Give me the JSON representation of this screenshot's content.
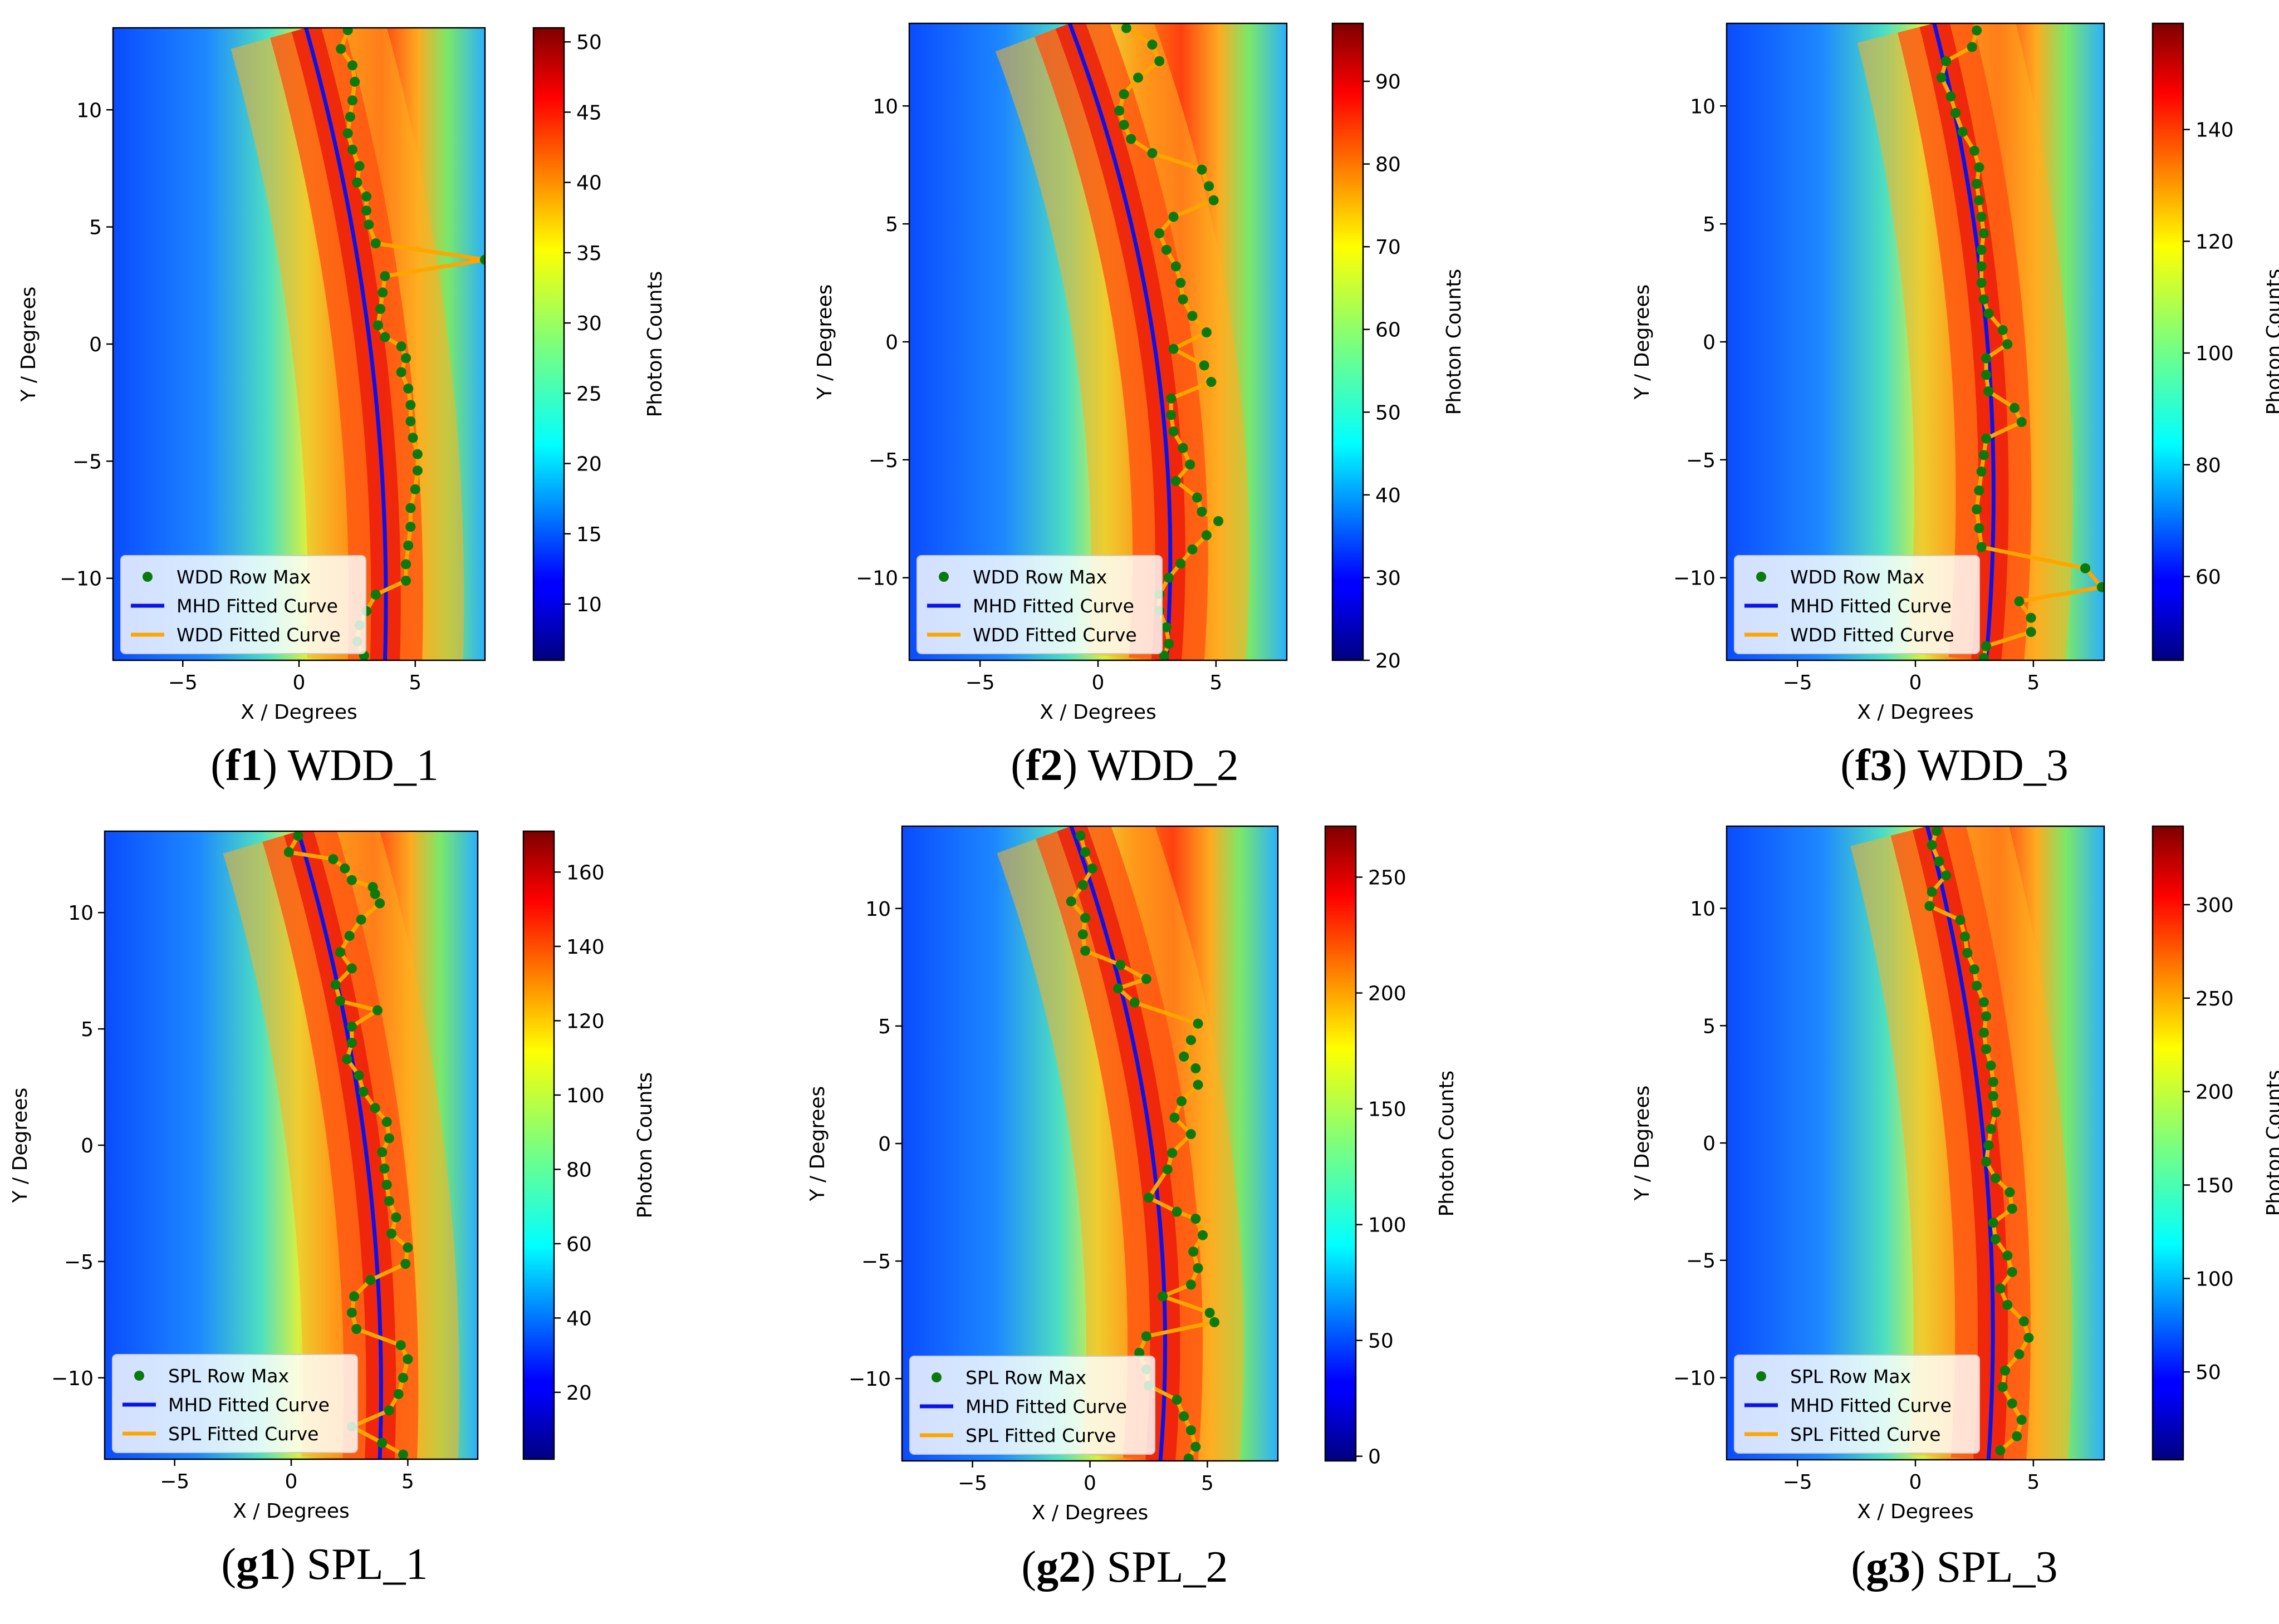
{
  "colors": {
    "mhd_curve": "#0a14e6",
    "fitted_curve": "#ffa500",
    "row_max": "#0a7a0a",
    "colormap": "jet"
  },
  "chart_data": [
    {
      "type": "heatmap",
      "id": "f1",
      "caption_label": "f1",
      "caption_text": "WDD_1",
      "xlabel": "X / Degrees",
      "ylabel": "Y / Degrees",
      "xlim": [
        -8,
        8
      ],
      "ylim": [
        -13.5,
        13.5
      ],
      "xticks": [
        -5,
        0,
        5
      ],
      "yticks": [
        -10,
        -5,
        0,
        5,
        10
      ],
      "colorbar": {
        "label": "Photon Counts",
        "min": 6,
        "max": 51,
        "ticks": [
          10,
          15,
          20,
          25,
          30,
          35,
          40,
          45,
          50
        ]
      },
      "legend": {
        "placement": "lower-left",
        "entries": [
          "WDD Row Max",
          "MHD Fitted Curve",
          "WDD Fitted Curve"
        ]
      },
      "mhd_curve": {
        "x_at_top": 0.3,
        "x_at_mid": 3.6,
        "x_at_bottom": 3.7
      },
      "row_max_points": [
        [
          2.1,
          13.4
        ],
        [
          1.8,
          12.6
        ],
        [
          2.3,
          11.9
        ],
        [
          2.4,
          11.2
        ],
        [
          2.3,
          10.4
        ],
        [
          2.2,
          9.7
        ],
        [
          2.1,
          9.0
        ],
        [
          2.3,
          8.3
        ],
        [
          2.6,
          7.6
        ],
        [
          2.5,
          6.9
        ],
        [
          2.9,
          6.3
        ],
        [
          2.9,
          5.7
        ],
        [
          3.0,
          5.1
        ],
        [
          3.3,
          4.3
        ],
        [
          8.0,
          3.6
        ],
        [
          3.7,
          2.9
        ],
        [
          3.6,
          2.2
        ],
        [
          3.5,
          1.5
        ],
        [
          3.4,
          0.8
        ],
        [
          3.7,
          0.3
        ],
        [
          4.4,
          -0.1
        ],
        [
          4.6,
          -0.6
        ],
        [
          4.4,
          -1.2
        ],
        [
          4.7,
          -1.9
        ],
        [
          4.8,
          -2.6
        ],
        [
          4.8,
          -3.3
        ],
        [
          4.9,
          -4.0
        ],
        [
          5.1,
          -4.7
        ],
        [
          5.1,
          -5.4
        ],
        [
          5.0,
          -6.2
        ],
        [
          4.8,
          -7.0
        ],
        [
          4.8,
          -7.8
        ],
        [
          4.7,
          -8.6
        ],
        [
          4.6,
          -9.4
        ],
        [
          4.6,
          -10.1
        ],
        [
          3.3,
          -10.7
        ],
        [
          2.9,
          -11.4
        ],
        [
          2.6,
          -12.0
        ],
        [
          2.5,
          -12.7
        ],
        [
          2.8,
          -13.3
        ]
      ]
    },
    {
      "type": "heatmap",
      "id": "f2",
      "caption_label": "f2",
      "caption_text": "WDD_2",
      "xlabel": "X / Degrees",
      "ylabel": "Y / Degrees",
      "xlim": [
        -8,
        8
      ],
      "ylim": [
        -13.5,
        13.5
      ],
      "xticks": [
        -5,
        0,
        5
      ],
      "yticks": [
        -10,
        -5,
        0,
        5,
        10
      ],
      "colorbar": {
        "label": "Photon Counts",
        "min": 20,
        "max": 97,
        "ticks": [
          20,
          30,
          40,
          50,
          60,
          70,
          80,
          90
        ]
      },
      "legend": {
        "placement": "lower-left",
        "entries": [
          "WDD Row Max",
          "MHD Fitted Curve",
          "WDD Fitted Curve"
        ]
      },
      "mhd_curve": {
        "x_at_top": -1.2,
        "x_at_mid": 3.4,
        "x_at_bottom": 2.9
      },
      "row_max_points": [
        [
          1.2,
          13.3
        ],
        [
          2.3,
          12.6
        ],
        [
          2.6,
          11.9
        ],
        [
          1.7,
          11.2
        ],
        [
          1.1,
          10.5
        ],
        [
          0.9,
          9.8
        ],
        [
          1.1,
          9.2
        ],
        [
          1.4,
          8.6
        ],
        [
          2.3,
          8.0
        ],
        [
          4.4,
          7.3
        ],
        [
          4.7,
          6.6
        ],
        [
          4.9,
          6.0
        ],
        [
          3.2,
          5.3
        ],
        [
          2.6,
          4.6
        ],
        [
          2.9,
          3.9
        ],
        [
          3.3,
          3.2
        ],
        [
          3.5,
          2.5
        ],
        [
          3.6,
          1.8
        ],
        [
          4.0,
          1.1
        ],
        [
          4.6,
          0.4
        ],
        [
          3.2,
          -0.3
        ],
        [
          4.5,
          -1.0
        ],
        [
          4.8,
          -1.7
        ],
        [
          3.1,
          -2.4
        ],
        [
          3.1,
          -3.1
        ],
        [
          3.2,
          -3.8
        ],
        [
          3.6,
          -4.5
        ],
        [
          3.9,
          -5.2
        ],
        [
          3.3,
          -5.9
        ],
        [
          4.2,
          -6.6
        ],
        [
          4.4,
          -7.2
        ],
        [
          5.1,
          -7.6
        ],
        [
          4.6,
          -8.2
        ],
        [
          4.0,
          -8.8
        ],
        [
          3.5,
          -9.4
        ],
        [
          3.0,
          -10.0
        ],
        [
          2.6,
          -10.7
        ],
        [
          2.6,
          -11.4
        ],
        [
          2.9,
          -12.1
        ],
        [
          3.0,
          -12.8
        ],
        [
          2.8,
          -13.3
        ]
      ]
    },
    {
      "type": "heatmap",
      "id": "f3",
      "caption_label": "f3",
      "caption_text": "WDD_3",
      "xlabel": "X / Degrees",
      "ylabel": "Y / Degrees",
      "xlim": [
        -8,
        8
      ],
      "ylim": [
        -13.5,
        13.5
      ],
      "xticks": [
        -5,
        0,
        5
      ],
      "yticks": [
        -10,
        -5,
        0,
        5,
        10
      ],
      "colorbar": {
        "label": "Photon Counts",
        "min": 45,
        "max": 159,
        "ticks": [
          60,
          80,
          100,
          120,
          140
        ]
      },
      "legend": {
        "placement": "lower-left",
        "entries": [
          "WDD Row Max",
          "MHD Fitted Curve",
          "WDD Fitted Curve"
        ]
      },
      "mhd_curve": {
        "x_at_top": 0.8,
        "x_at_mid": 3.7,
        "x_at_bottom": 3.0
      },
      "row_max_points": [
        [
          2.6,
          13.2
        ],
        [
          2.4,
          12.5
        ],
        [
          1.3,
          11.9
        ],
        [
          1.1,
          11.2
        ],
        [
          1.5,
          10.4
        ],
        [
          1.7,
          9.7
        ],
        [
          2.0,
          8.9
        ],
        [
          2.5,
          8.1
        ],
        [
          2.7,
          7.4
        ],
        [
          2.6,
          6.7
        ],
        [
          2.7,
          6.0
        ],
        [
          2.8,
          5.3
        ],
        [
          2.9,
          4.6
        ],
        [
          2.8,
          3.9
        ],
        [
          2.8,
          3.2
        ],
        [
          2.8,
          2.5
        ],
        [
          2.9,
          1.8
        ],
        [
          3.1,
          1.2
        ],
        [
          3.7,
          0.5
        ],
        [
          3.9,
          -0.1
        ],
        [
          3.0,
          -0.7
        ],
        [
          3.0,
          -1.4
        ],
        [
          3.1,
          -2.1
        ],
        [
          4.2,
          -2.8
        ],
        [
          4.5,
          -3.4
        ],
        [
          3.0,
          -4.1
        ],
        [
          2.9,
          -4.8
        ],
        [
          2.8,
          -5.5
        ],
        [
          2.7,
          -6.3
        ],
        [
          2.6,
          -7.1
        ],
        [
          2.7,
          -7.9
        ],
        [
          2.8,
          -8.7
        ],
        [
          7.2,
          -9.6
        ],
        [
          7.9,
          -10.4
        ],
        [
          4.4,
          -11.0
        ],
        [
          4.9,
          -11.7
        ],
        [
          4.9,
          -12.3
        ],
        [
          3.0,
          -12.9
        ],
        [
          2.9,
          -13.4
        ]
      ]
    },
    {
      "type": "heatmap",
      "id": "g1",
      "caption_label": "g1",
      "caption_text": "SPL_1",
      "xlabel": "X / Degrees",
      "ylabel": "Y / Degrees",
      "xlim": [
        -8,
        8
      ],
      "ylim": [
        -13.5,
        13.5
      ],
      "xticks": [
        -5,
        0,
        5
      ],
      "yticks": [
        -10,
        -5,
        0,
        5,
        10
      ],
      "colorbar": {
        "label": "Photon Counts",
        "min": 2,
        "max": 171,
        "ticks": [
          20,
          40,
          60,
          80,
          100,
          120,
          140,
          160
        ]
      },
      "legend": {
        "placement": "lower-left",
        "entries": [
          "SPL Row Max",
          "MHD Fitted Curve",
          "SPL Fitted Curve"
        ]
      },
      "mhd_curve": {
        "x_at_top": 0.3,
        "x_at_mid": 3.8,
        "x_at_bottom": 3.8
      },
      "row_max_points": [
        [
          0.3,
          13.3
        ],
        [
          -0.1,
          12.6
        ],
        [
          1.8,
          12.3
        ],
        [
          2.3,
          11.9
        ],
        [
          2.6,
          11.4
        ],
        [
          3.5,
          11.1
        ],
        [
          3.6,
          10.8
        ],
        [
          3.8,
          10.4
        ],
        [
          3.0,
          9.7
        ],
        [
          2.5,
          9.0
        ],
        [
          2.1,
          8.3
        ],
        [
          2.6,
          7.6
        ],
        [
          1.9,
          6.9
        ],
        [
          2.1,
          6.2
        ],
        [
          3.7,
          5.8
        ],
        [
          2.6,
          5.1
        ],
        [
          2.6,
          4.4
        ],
        [
          2.4,
          3.7
        ],
        [
          2.9,
          3.0
        ],
        [
          3.1,
          2.3
        ],
        [
          3.6,
          1.6
        ],
        [
          4.1,
          1.0
        ],
        [
          4.2,
          0.3
        ],
        [
          3.9,
          -0.3
        ],
        [
          4.0,
          -1.0
        ],
        [
          4.1,
          -1.7
        ],
        [
          4.2,
          -2.4
        ],
        [
          4.5,
          -3.1
        ],
        [
          4.3,
          -3.8
        ],
        [
          5.0,
          -4.4
        ],
        [
          4.9,
          -5.1
        ],
        [
          3.4,
          -5.8
        ],
        [
          2.7,
          -6.5
        ],
        [
          2.6,
          -7.2
        ],
        [
          2.8,
          -7.9
        ],
        [
          4.7,
          -8.6
        ],
        [
          5.0,
          -9.2
        ],
        [
          4.8,
          -10.0
        ],
        [
          4.6,
          -10.7
        ],
        [
          4.2,
          -11.4
        ],
        [
          2.6,
          -12.1
        ],
        [
          3.9,
          -12.8
        ],
        [
          4.8,
          -13.3
        ]
      ]
    },
    {
      "type": "heatmap",
      "id": "g2",
      "caption_label": "g2",
      "caption_text": "SPL_2",
      "xlabel": "X / Degrees",
      "ylabel": "Y / Degrees",
      "xlim": [
        -8,
        8
      ],
      "ylim": [
        -13.5,
        13.5
      ],
      "xticks": [
        -5,
        0,
        5
      ],
      "yticks": [
        -10,
        -5,
        0,
        5,
        10
      ],
      "colorbar": {
        "label": "Photon Counts",
        "min": -2,
        "max": 272,
        "ticks": [
          0,
          50,
          100,
          150,
          200,
          250
        ]
      },
      "legend": {
        "placement": "lower-left",
        "entries": [
          "SPL Row Max",
          "MHD Fitted Curve",
          "SPL Fitted Curve"
        ]
      },
      "mhd_curve": {
        "x_at_top": -0.8,
        "x_at_mid": 3.6,
        "x_at_bottom": 3.0
      },
      "row_max_points": [
        [
          -0.4,
          13.1
        ],
        [
          -0.2,
          12.4
        ],
        [
          0.1,
          11.7
        ],
        [
          -0.3,
          11.0
        ],
        [
          -0.8,
          10.3
        ],
        [
          -0.2,
          9.6
        ],
        [
          -0.3,
          8.9
        ],
        [
          -0.2,
          8.2
        ],
        [
          1.3,
          7.6
        ],
        [
          2.4,
          7.0
        ],
        [
          1.2,
          6.6
        ],
        [
          1.9,
          6.0
        ],
        [
          4.6,
          5.1
        ],
        [
          4.3,
          4.4
        ],
        [
          4.0,
          3.7
        ],
        [
          4.5,
          3.2
        ],
        [
          4.6,
          2.5
        ],
        [
          3.9,
          1.8
        ],
        [
          3.6,
          1.1
        ],
        [
          4.3,
          0.4
        ],
        [
          3.5,
          -0.4
        ],
        [
          3.3,
          -1.1
        ],
        [
          2.5,
          -2.3
        ],
        [
          3.7,
          -2.9
        ],
        [
          4.5,
          -3.2
        ],
        [
          4.8,
          -3.9
        ],
        [
          4.4,
          -4.6
        ],
        [
          4.6,
          -5.3
        ],
        [
          4.3,
          -6.0
        ],
        [
          3.1,
          -6.5
        ],
        [
          5.1,
          -7.2
        ],
        [
          5.3,
          -7.6
        ],
        [
          2.4,
          -8.2
        ],
        [
          2.1,
          -8.9
        ],
        [
          2.4,
          -9.6
        ],
        [
          2.5,
          -10.3
        ],
        [
          3.7,
          -10.9
        ],
        [
          4.0,
          -11.6
        ],
        [
          4.3,
          -12.2
        ],
        [
          4.5,
          -12.9
        ],
        [
          4.2,
          -13.4
        ]
      ]
    },
    {
      "type": "heatmap",
      "id": "g3",
      "caption_label": "g3",
      "caption_text": "SPL_3",
      "xlabel": "X / Degrees",
      "ylabel": "Y / Degrees",
      "xlim": [
        -8,
        8
      ],
      "ylim": [
        -13.5,
        13.5
      ],
      "xticks": [
        -5,
        0,
        5
      ],
      "yticks": [
        -10,
        -5,
        0,
        5,
        10
      ],
      "colorbar": {
        "label": "Photon Counts",
        "min": 3,
        "max": 342,
        "ticks": [
          50,
          100,
          150,
          200,
          250,
          300
        ]
      },
      "legend": {
        "placement": "lower-left",
        "entries": [
          "SPL Row Max",
          "MHD Fitted Curve",
          "SPL Fitted Curve"
        ]
      },
      "mhd_curve": {
        "x_at_top": 0.5,
        "x_at_mid": 3.5,
        "x_at_bottom": 3.1
      },
      "row_max_points": [
        [
          0.9,
          13.3
        ],
        [
          0.7,
          12.7
        ],
        [
          1.0,
          12.0
        ],
        [
          1.3,
          11.4
        ],
        [
          0.7,
          10.7
        ],
        [
          0.6,
          10.1
        ],
        [
          1.9,
          9.5
        ],
        [
          2.1,
          8.8
        ],
        [
          2.2,
          8.1
        ],
        [
          2.5,
          7.4
        ],
        [
          2.6,
          6.7
        ],
        [
          2.9,
          6.0
        ],
        [
          3.0,
          5.4
        ],
        [
          2.9,
          4.7
        ],
        [
          3.0,
          4.0
        ],
        [
          3.2,
          3.3
        ],
        [
          3.3,
          2.6
        ],
        [
          3.3,
          2.0
        ],
        [
          3.4,
          1.3
        ],
        [
          3.2,
          0.6
        ],
        [
          3.1,
          -0.1
        ],
        [
          3.0,
          -0.8
        ],
        [
          3.4,
          -1.5
        ],
        [
          4.0,
          -2.1
        ],
        [
          4.1,
          -2.8
        ],
        [
          3.3,
          -3.4
        ],
        [
          3.4,
          -4.1
        ],
        [
          3.9,
          -4.8
        ],
        [
          4.1,
          -5.5
        ],
        [
          3.6,
          -6.2
        ],
        [
          3.9,
          -6.9
        ],
        [
          4.6,
          -7.6
        ],
        [
          4.8,
          -8.3
        ],
        [
          4.4,
          -9.0
        ],
        [
          3.8,
          -9.7
        ],
        [
          3.7,
          -10.4
        ],
        [
          4.1,
          -11.1
        ],
        [
          4.5,
          -11.8
        ],
        [
          4.3,
          -12.5
        ],
        [
          3.6,
          -13.1
        ]
      ]
    }
  ]
}
